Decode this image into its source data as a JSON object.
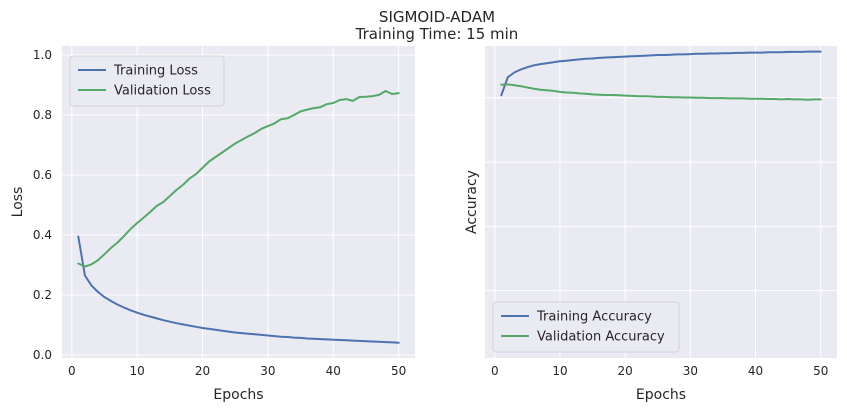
{
  "figure": {
    "title_line1": "SIGMOID-ADAM",
    "title_line2": "Training Time: 15 min"
  },
  "colors": {
    "background": "#ffffff",
    "axes_face": "#eaeaf2",
    "grid": "#ffffff",
    "text": "#262626",
    "blue": "#4c72b0",
    "green": "#55a868"
  },
  "chart_data": [
    {
      "type": "line",
      "xlabel": "Epochs",
      "ylabel": "Loss",
      "xlim": [
        -1.5,
        52.5
      ],
      "ylim": [
        -0.01,
        1.03
      ],
      "xticks": [
        0,
        10,
        20,
        30,
        40,
        50
      ],
      "xtick_labels": [
        "0",
        "10",
        "20",
        "30",
        "40",
        "50"
      ],
      "yticks": [
        0.0,
        0.2,
        0.4,
        0.6,
        0.8,
        1.0
      ],
      "ytick_labels": [
        "0.0",
        "0.2",
        "0.4",
        "0.6",
        "0.8",
        "1.0"
      ],
      "grid": true,
      "legend_position": "top-left",
      "series": [
        {
          "name": "Training Loss",
          "color": "#4c72b0",
          "x": [
            1,
            2,
            3,
            4,
            5,
            6,
            7,
            8,
            9,
            10,
            11,
            12,
            13,
            14,
            15,
            16,
            17,
            18,
            19,
            20,
            21,
            22,
            23,
            24,
            25,
            26,
            27,
            28,
            29,
            30,
            31,
            32,
            33,
            34,
            35,
            36,
            37,
            38,
            39,
            40,
            41,
            42,
            43,
            44,
            45,
            46,
            47,
            48,
            49,
            50
          ],
          "y": [
            0.395,
            0.265,
            0.232,
            0.21,
            0.193,
            0.18,
            0.168,
            0.158,
            0.149,
            0.141,
            0.134,
            0.128,
            0.122,
            0.116,
            0.111,
            0.106,
            0.102,
            0.098,
            0.094,
            0.09,
            0.087,
            0.084,
            0.081,
            0.078,
            0.075,
            0.073,
            0.071,
            0.069,
            0.067,
            0.065,
            0.063,
            0.061,
            0.06,
            0.058,
            0.057,
            0.055,
            0.054,
            0.053,
            0.052,
            0.051,
            0.05,
            0.049,
            0.048,
            0.047,
            0.046,
            0.045,
            0.044,
            0.043,
            0.042,
            0.041
          ]
        },
        {
          "name": "Validation Loss",
          "color": "#55a868",
          "x": [
            1,
            2,
            3,
            4,
            5,
            6,
            7,
            8,
            9,
            10,
            11,
            12,
            13,
            14,
            15,
            16,
            17,
            18,
            19,
            20,
            21,
            22,
            23,
            24,
            25,
            26,
            27,
            28,
            29,
            30,
            31,
            32,
            33,
            34,
            35,
            36,
            37,
            38,
            39,
            40,
            41,
            42,
            43,
            44,
            45,
            46,
            47,
            48,
            49,
            50
          ],
          "y": [
            0.305,
            0.295,
            0.302,
            0.316,
            0.336,
            0.357,
            0.375,
            0.397,
            0.42,
            0.44,
            0.458,
            0.477,
            0.497,
            0.51,
            0.53,
            0.55,
            0.567,
            0.588,
            0.603,
            0.624,
            0.645,
            0.66,
            0.675,
            0.69,
            0.705,
            0.717,
            0.729,
            0.74,
            0.754,
            0.763,
            0.772,
            0.786,
            0.789,
            0.8,
            0.812,
            0.818,
            0.823,
            0.826,
            0.836,
            0.84,
            0.85,
            0.853,
            0.847,
            0.86,
            0.861,
            0.863,
            0.867,
            0.88,
            0.87,
            0.873
          ]
        }
      ]
    },
    {
      "type": "line",
      "xlabel": "Epochs",
      "ylabel": "Accuracy",
      "xlim": [
        -1.5,
        52.5
      ],
      "ylim": [
        0.0,
        1.0
      ],
      "xticks": [
        0,
        10,
        20,
        30,
        40,
        50
      ],
      "xtick_labels": [
        "0",
        "10",
        "20",
        "30",
        "40",
        "50"
      ],
      "yticks": [],
      "ytick_labels": [],
      "y_grid_lines": [
        0.216,
        0.422,
        0.628,
        0.834
      ],
      "grid": true,
      "legend_position": "bottom-left",
      "series": [
        {
          "name": "Training Accuracy",
          "color": "#4c72b0",
          "x": [
            1,
            2,
            3,
            4,
            5,
            6,
            7,
            8,
            9,
            10,
            11,
            12,
            13,
            14,
            15,
            16,
            17,
            18,
            19,
            20,
            21,
            22,
            23,
            24,
            25,
            26,
            27,
            28,
            29,
            30,
            31,
            32,
            33,
            34,
            35,
            36,
            37,
            38,
            39,
            40,
            41,
            42,
            43,
            44,
            45,
            46,
            47,
            48,
            49,
            50
          ],
          "y": [
            0.842,
            0.9,
            0.915,
            0.925,
            0.932,
            0.938,
            0.942,
            0.945,
            0.948,
            0.951,
            0.953,
            0.955,
            0.957,
            0.959,
            0.96,
            0.962,
            0.963,
            0.964,
            0.965,
            0.966,
            0.967,
            0.968,
            0.969,
            0.97,
            0.971,
            0.971,
            0.972,
            0.973,
            0.973,
            0.974,
            0.975,
            0.975,
            0.976,
            0.976,
            0.977,
            0.977,
            0.978,
            0.978,
            0.979,
            0.979,
            0.979,
            0.98,
            0.98,
            0.98,
            0.981,
            0.981,
            0.981,
            0.982,
            0.982,
            0.982
          ]
        },
        {
          "name": "Validation Accuracy",
          "color": "#55a868",
          "x": [
            1,
            2,
            3,
            4,
            5,
            6,
            7,
            8,
            9,
            10,
            11,
            12,
            13,
            14,
            15,
            16,
            17,
            18,
            19,
            20,
            21,
            22,
            23,
            24,
            25,
            26,
            27,
            28,
            29,
            30,
            31,
            32,
            33,
            34,
            35,
            36,
            37,
            38,
            39,
            40,
            41,
            42,
            43,
            44,
            45,
            46,
            47,
            48,
            49,
            50
          ],
          "y": [
            0.876,
            0.877,
            0.874,
            0.871,
            0.867,
            0.863,
            0.86,
            0.858,
            0.856,
            0.853,
            0.851,
            0.85,
            0.848,
            0.847,
            0.845,
            0.844,
            0.843,
            0.843,
            0.842,
            0.841,
            0.84,
            0.839,
            0.839,
            0.838,
            0.837,
            0.837,
            0.836,
            0.836,
            0.835,
            0.835,
            0.834,
            0.834,
            0.833,
            0.833,
            0.833,
            0.832,
            0.832,
            0.832,
            0.831,
            0.831,
            0.831,
            0.83,
            0.83,
            0.829,
            0.83,
            0.829,
            0.829,
            0.828,
            0.829,
            0.829
          ]
        }
      ]
    }
  ]
}
